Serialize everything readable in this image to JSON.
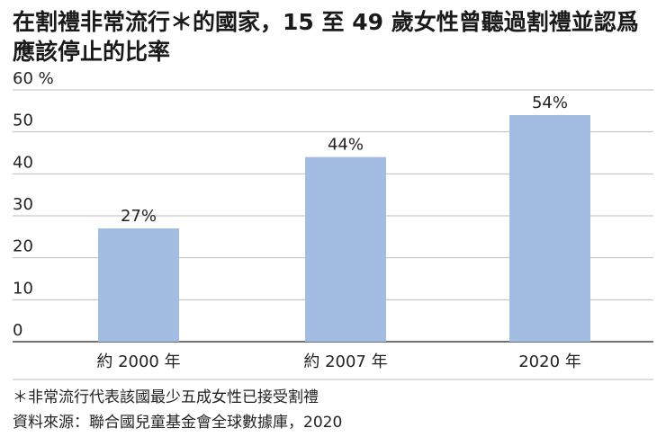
{
  "title": "在割禮非常流行＊的國家，15 至 49 歲女性曾聽過割禮並認爲應該停止的比率",
  "chart_data": {
    "type": "bar",
    "title": "在割禮非常流行＊的國家，15 至 49 歲女性曾聽過割禮並認爲應該停止的比率",
    "categories": [
      "約 2000 年",
      "約 2007 年",
      "2020 年"
    ],
    "values": [
      27,
      44,
      54
    ],
    "value_labels": [
      "27%",
      "44%",
      "54%"
    ],
    "y_unit": "%",
    "y_ticks": [
      0,
      10,
      20,
      30,
      40,
      50,
      60
    ],
    "ylim": [
      0,
      60
    ],
    "grid": true,
    "xlabel": "",
    "ylabel": "",
    "bar_color": "#a3bde2"
  },
  "footnote": "＊非常流行代表該國最少五成女性已接受割禮",
  "source": "資料來源：聯合國兒童基金會全球數據庫，2020"
}
